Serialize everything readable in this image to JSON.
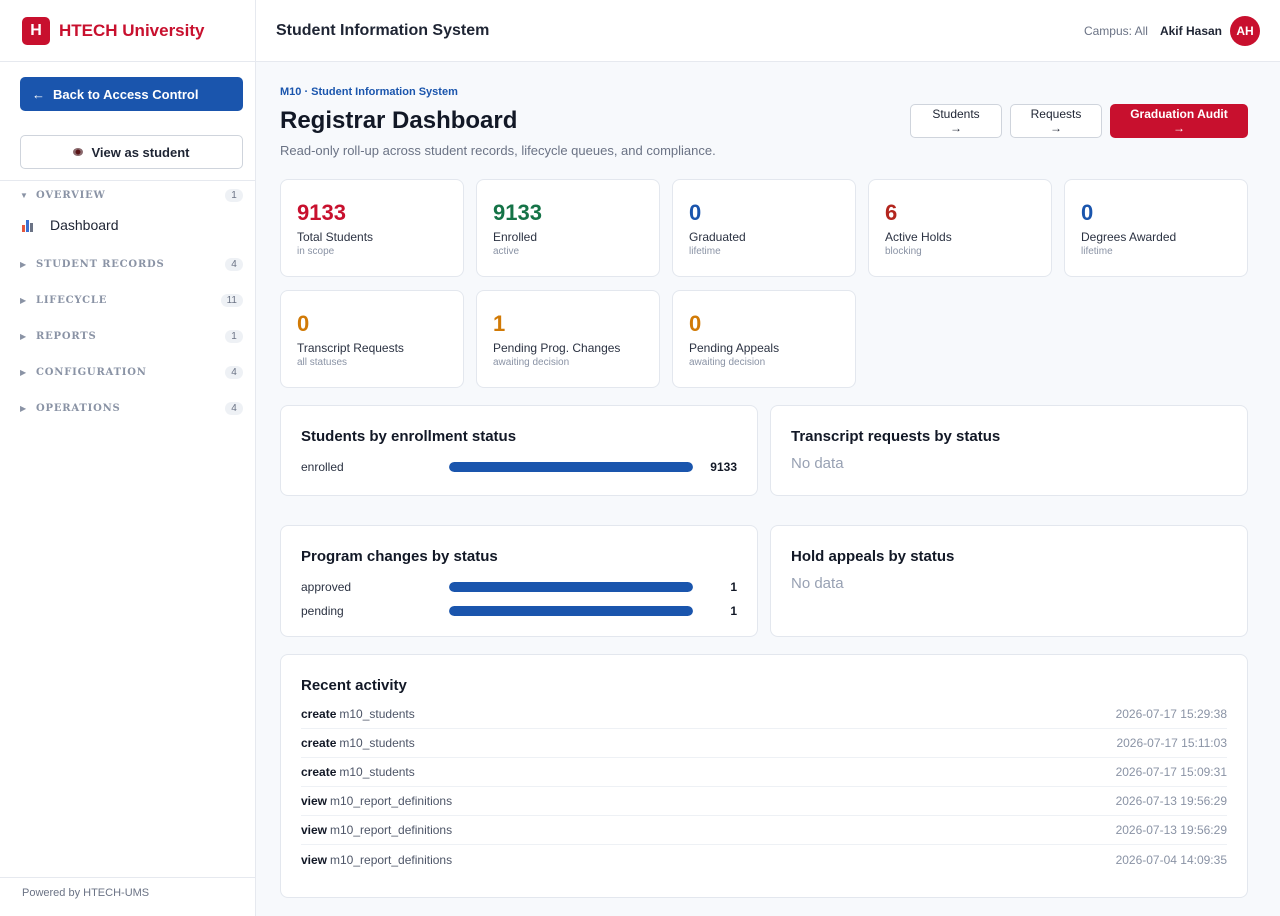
{
  "brand": {
    "logo_letter": "H",
    "name": "HTECH University"
  },
  "sidebar": {
    "back_label": "Back to Access Control",
    "view_as_label": "View as student",
    "sections": [
      {
        "label": "OVERVIEW",
        "count": "1",
        "expanded": true
      },
      {
        "label": "STUDENT RECORDS",
        "count": "4",
        "expanded": false
      },
      {
        "label": "LIFECYCLE",
        "count": "11",
        "expanded": false
      },
      {
        "label": "REPORTS",
        "count": "1",
        "expanded": false
      },
      {
        "label": "CONFIGURATION",
        "count": "4",
        "expanded": false
      },
      {
        "label": "OPERATIONS",
        "count": "4",
        "expanded": false
      }
    ],
    "active_item": "Dashboard",
    "footer": "Powered by HTECH-UMS"
  },
  "header": {
    "title": "Student Information System",
    "campus": "Campus: All",
    "user": "Akif Hasan",
    "initials": "AH"
  },
  "page": {
    "breadcrumb": "M10 · Student Information System",
    "title": "Registrar Dashboard",
    "subtitle": "Read-only roll-up across student records, lifecycle queues, and compliance.",
    "actions": {
      "students": "Students →",
      "requests": "Requests →",
      "audit": "Graduation Audit →"
    }
  },
  "stats": [
    {
      "value": "9133",
      "label": "Total Students",
      "sub": "in scope",
      "color": "#c8102e"
    },
    {
      "value": "9133",
      "label": "Enrolled",
      "sub": "active",
      "color": "#157347"
    },
    {
      "value": "0",
      "label": "Graduated",
      "sub": "lifetime",
      "color": "#1a55ad"
    },
    {
      "value": "6",
      "label": "Active Holds",
      "sub": "blocking",
      "color": "#b3261e"
    },
    {
      "value": "0",
      "label": "Degrees Awarded",
      "sub": "lifetime",
      "color": "#1a55ad"
    },
    {
      "value": "0",
      "label": "Transcript Requests",
      "sub": "all statuses",
      "color": "#d17a06"
    },
    {
      "value": "1",
      "label": "Pending Prog. Changes",
      "sub": "awaiting decision",
      "color": "#d17a06"
    },
    {
      "value": "0",
      "label": "Pending Appeals",
      "sub": "awaiting decision",
      "color": "#d17a06"
    }
  ],
  "panels": {
    "enrollment": {
      "title": "Students by enrollment status",
      "rows": [
        {
          "label": "enrolled",
          "value": "9133",
          "fraction": 1.0
        }
      ]
    },
    "transcripts": {
      "title": "Transcript requests by status",
      "empty": "No data"
    },
    "program_changes": {
      "title": "Program changes by status",
      "rows": [
        {
          "label": "approved",
          "value": "1",
          "fraction": 1.0
        },
        {
          "label": "pending",
          "value": "1",
          "fraction": 1.0
        }
      ]
    },
    "appeals": {
      "title": "Hold appeals by status",
      "empty": "No data"
    }
  },
  "activity": {
    "title": "Recent activity",
    "rows": [
      {
        "action": "create",
        "target": "m10_students",
        "time": "2026-07-17 15:29:38"
      },
      {
        "action": "create",
        "target": "m10_students",
        "time": "2026-07-17 15:11:03"
      },
      {
        "action": "create",
        "target": "m10_students",
        "time": "2026-07-17 15:09:31"
      },
      {
        "action": "view",
        "target": "m10_report_definitions",
        "time": "2026-07-13 19:56:29"
      },
      {
        "action": "view",
        "target": "m10_report_definitions",
        "time": "2026-07-13 19:56:29"
      },
      {
        "action": "view",
        "target": "m10_report_definitions",
        "time": "2026-07-04 14:09:35"
      }
    ]
  }
}
